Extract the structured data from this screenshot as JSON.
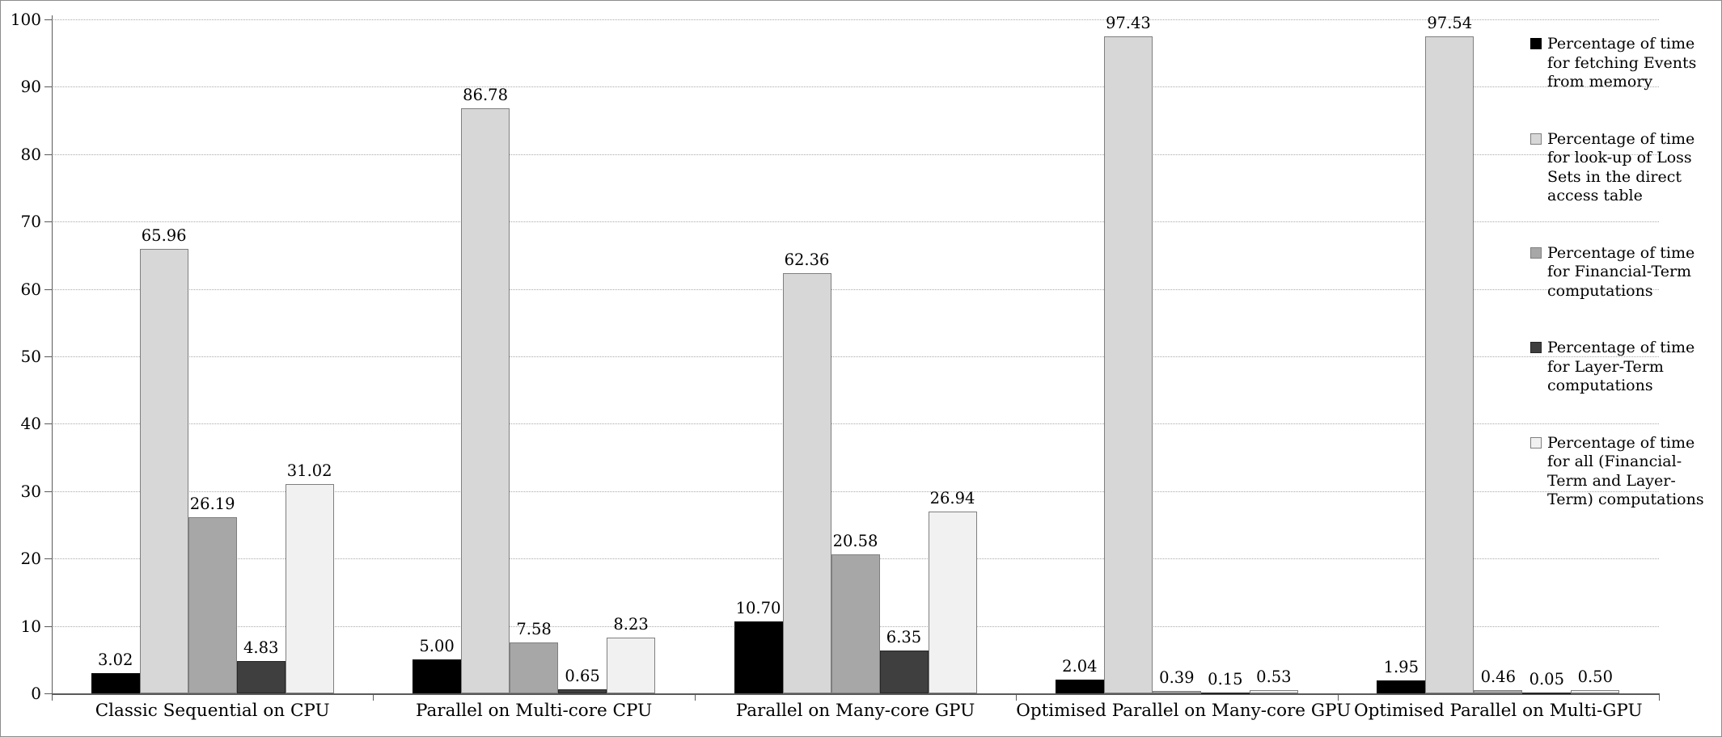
{
  "chart_data": {
    "type": "bar",
    "title": "",
    "xlabel": "",
    "ylabel": "",
    "ylim": [
      0,
      100
    ],
    "y_tick_step": 10,
    "grid": "horizontal-dotted",
    "legend_position": "right",
    "value_label_decimals": 2,
    "categories": [
      "Classic Sequential on CPU",
      "Parallel on Multi-core CPU",
      "Parallel on Many-core GPU",
      "Optimised Parallel on Many-core GPU",
      "Optimised Parallel on Multi-GPU"
    ],
    "series": [
      {
        "name": "Percentage of time for fetching Events from memory",
        "legend_label": "Percentage of time\nfor fetching Events\nfrom memory",
        "fill": "#000000",
        "border": "#000000",
        "values": [
          3.02,
          5.0,
          10.7,
          2.04,
          1.95
        ]
      },
      {
        "name": "Percentage of time for look-up of Loss Sets in the direct access table",
        "legend_label": "Percentage of time\nfor look-up of Loss\nSets in the direct\naccess table",
        "fill": "#d7d7d7",
        "border": "#7f7f7f",
        "values": [
          65.96,
          86.78,
          62.36,
          97.43,
          97.54
        ]
      },
      {
        "name": "Percentage of time for Financial-Term computations",
        "legend_label": "Percentage of time\nfor Financial-Term\ncomputations",
        "fill": "#a7a7a7",
        "border": "#7f7f7f",
        "values": [
          26.19,
          7.58,
          20.58,
          0.39,
          0.46
        ]
      },
      {
        "name": "Percentage of time for Layer-Term computations",
        "legend_label": "Percentage of time\nfor Layer-Term\ncomputations",
        "fill": "#3f3f3f",
        "border": "#262626",
        "values": [
          4.83,
          0.65,
          6.35,
          0.15,
          0.05
        ]
      },
      {
        "name": "Percentage of time for all (Financial-Term and Layer-Term) computations",
        "legend_label": "Percentage of time\nfor all (Financial-\nTerm and Layer-\nTerm) computations",
        "fill": "#f1f1f1",
        "border": "#7f7f7f",
        "values": [
          31.02,
          8.23,
          26.94,
          0.53,
          0.5
        ]
      }
    ]
  }
}
